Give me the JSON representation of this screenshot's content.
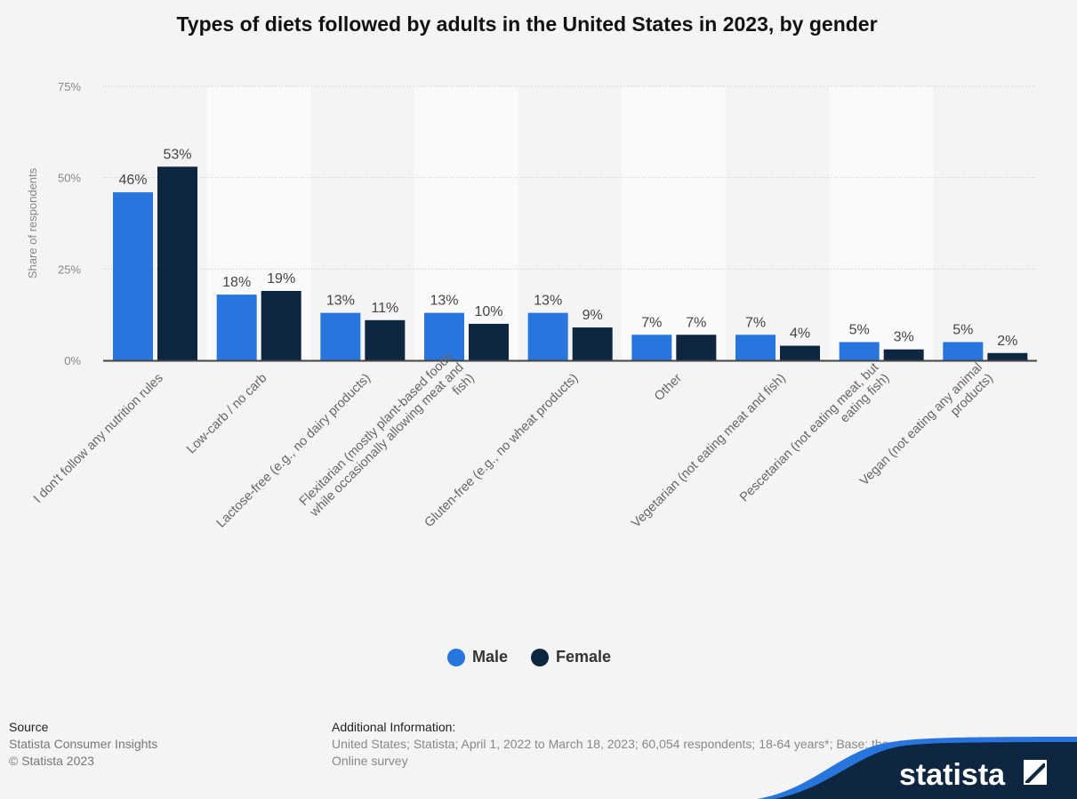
{
  "chart_data": {
    "type": "bar",
    "title": "Types of diets followed by adults in the United States in 2023, by gender",
    "ylabel": "Share of respondents",
    "xlabel": "",
    "ylim": [
      0,
      75
    ],
    "yticks": [
      "0%",
      "25%",
      "50%",
      "75%"
    ],
    "grid": true,
    "legend_position": "bottom",
    "categories": [
      "I don't follow any nutrition rules",
      "Low-carb / no carb",
      "Lactose-free (e.g., no dairy products)",
      "Flexitarian (mostly plant-based foods\nwhile occasionally allowing meat and\nfish)",
      "Gluten-free (e.g., no wheat products)",
      "Other",
      "Vegetarian (not eating meat and fish)",
      "Pescetarian (not eating meat, but\neating fish)",
      "Vegan (not eating any animal\nproducts)"
    ],
    "series": [
      {
        "name": "Male",
        "color": "#2876dd",
        "values": [
          46,
          18,
          13,
          13,
          13,
          7,
          7,
          5,
          5
        ],
        "labels": [
          "46%",
          "18%",
          "13%",
          "13%",
          "13%",
          "7%",
          "7%",
          "5%",
          "5%"
        ]
      },
      {
        "name": "Female",
        "color": "#0f2640",
        "values": [
          53,
          19,
          11,
          10,
          9,
          7,
          4,
          3,
          2
        ],
        "labels": [
          "53%",
          "19%",
          "11%",
          "10%",
          "9%",
          "7%",
          "4%",
          "3%",
          "2%"
        ]
      }
    ]
  },
  "source": {
    "heading": "Source",
    "lines": [
      "Statista Consumer Insights",
      "© Statista 2023"
    ]
  },
  "additional": {
    "heading": "Additional Information:",
    "text": "United States; Statista; April 1, 2022 to March 18, 2023; 60,054 respondents; 18-64 years*; Base: the stated time period.; Online survey"
  },
  "logo": "statista"
}
